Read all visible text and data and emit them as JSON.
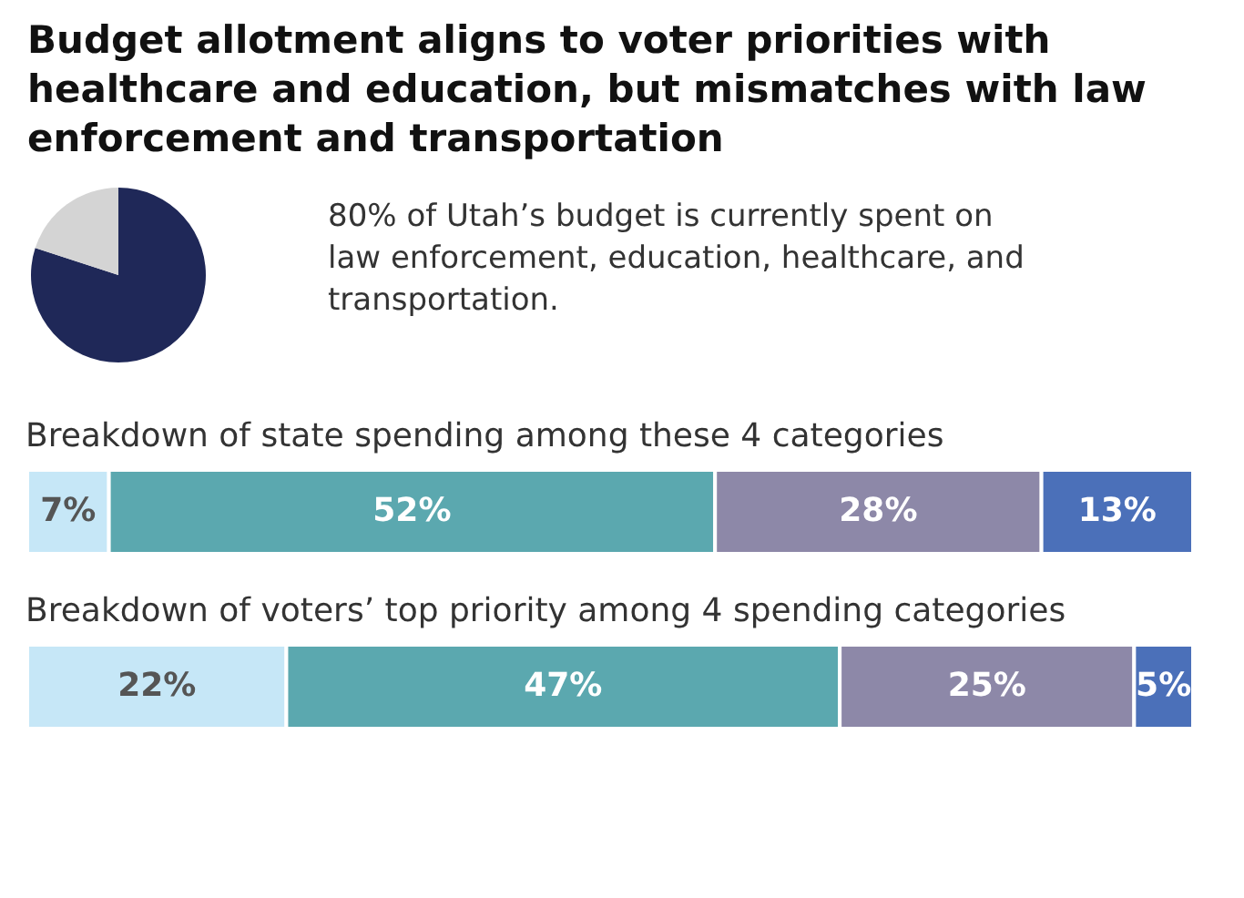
{
  "chart_data": [
    {
      "type": "pie",
      "title": "Budget allotment aligns to voter priorities with healthcare and education, but mismatches with law enforcement and transportation",
      "categories": [
        null,
        null
      ],
      "values": [
        80,
        20
      ],
      "colors": [
        "#1f2858",
        "#d4d4d4"
      ],
      "annotations": [
        "80% of Utah’s budget is currently spent on law enforcement, education, healthcare, and transportation."
      ]
    },
    {
      "type": "bar",
      "orientation": "horizontal",
      "stacked": true,
      "title": "Breakdown of state spending among these 4 categories",
      "categories": [
        null
      ],
      "series": [
        {
          "color": "#c6e7f7",
          "values": [
            7
          ],
          "value_labels": [
            "7%"
          ]
        },
        {
          "color": "#5ba8af",
          "values": [
            52
          ],
          "value_labels": [
            "52%"
          ]
        },
        {
          "color": "#8d88a8",
          "values": [
            28
          ],
          "value_labels": [
            "28%"
          ]
        },
        {
          "color": "#4b70b9",
          "values": [
            13
          ],
          "value_labels": [
            "13%"
          ]
        }
      ]
    },
    {
      "type": "bar",
      "orientation": "horizontal",
      "stacked": true,
      "title": "Breakdown of voters’ top priority among 4 spending categories",
      "categories": [
        null
      ],
      "series": [
        {
          "color": "#c6e7f7",
          "values": [
            22
          ],
          "value_labels": [
            "22%"
          ]
        },
        {
          "color": "#5ba8af",
          "values": [
            47
          ],
          "value_labels": [
            "47%"
          ]
        },
        {
          "color": "#8d88a8",
          "values": [
            25
          ],
          "value_labels": [
            "25%"
          ]
        },
        {
          "color": "#4b70b9",
          "values": [
            5
          ],
          "value_labels": [
            "5%"
          ]
        }
      ]
    }
  ]
}
